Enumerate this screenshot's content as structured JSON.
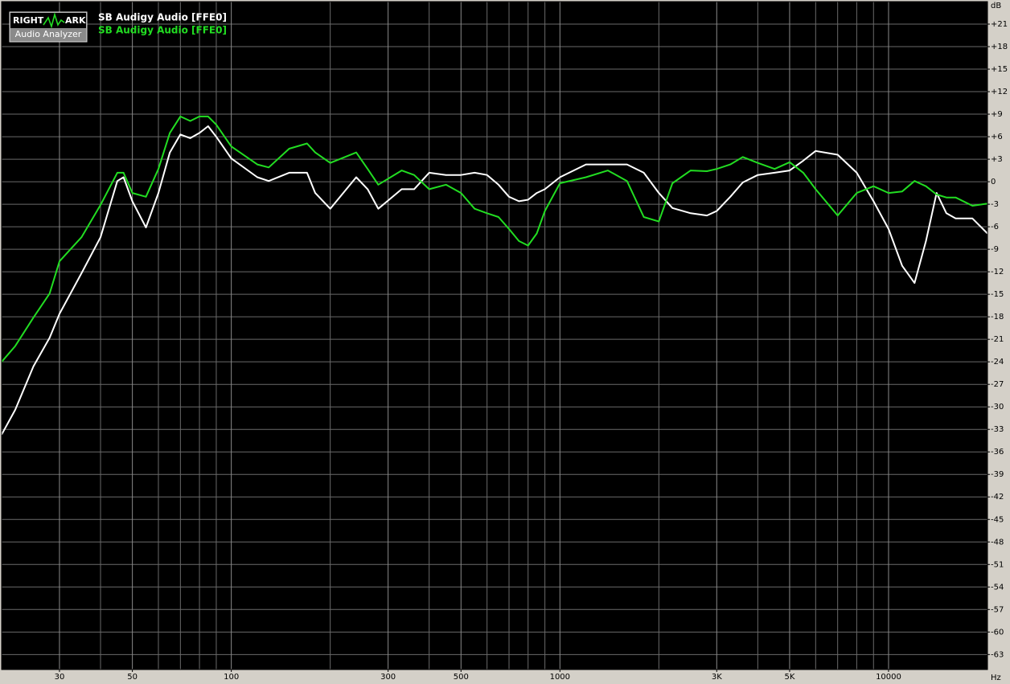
{
  "logo": {
    "left": "RIGHT",
    "right": "ARK",
    "bottom": "Audio Analyzer"
  },
  "chart_data": {
    "type": "line",
    "y_label": "dB",
    "x_label": "Hz",
    "log_x": true,
    "grid": true,
    "background": "#000000",
    "x": [
      20,
      22,
      25,
      28,
      30,
      35,
      40,
      45,
      47,
      50,
      55,
      60,
      65,
      70,
      75,
      80,
      85,
      90,
      100,
      120,
      130,
      150,
      170,
      180,
      200,
      240,
      260,
      280,
      330,
      360,
      400,
      450,
      500,
      550,
      600,
      650,
      700,
      750,
      800,
      850,
      900,
      1000,
      1200,
      1400,
      1600,
      1800,
      2000,
      2200,
      2500,
      2800,
      3000,
      3300,
      3600,
      4000,
      4500,
      5000,
      5500,
      6000,
      7000,
      8000,
      9000,
      10000,
      11000,
      12000,
      13000,
      14000,
      15000,
      16000,
      18000,
      20000
    ],
    "series": [
      {
        "name": "SB Audigy Audio [FFE0]",
        "color": "#ffffff",
        "values": [
          -33.7,
          -30.4,
          -24.6,
          -20.8,
          -17.6,
          -12.2,
          -7.4,
          0.1,
          0.6,
          -2.6,
          -6.1,
          -1.5,
          3.9,
          6.3,
          5.8,
          6.5,
          7.4,
          6.0,
          3.1,
          0.6,
          0.1,
          1.2,
          1.2,
          -1.5,
          -3.6,
          0.6,
          -1.0,
          -3.6,
          -1.0,
          -1.0,
          1.2,
          0.9,
          0.9,
          1.2,
          0.9,
          -0.4,
          -2.0,
          -2.6,
          -2.4,
          -1.5,
          -1.0,
          0.6,
          2.3,
          2.3,
          2.3,
          1.2,
          -1.5,
          -3.5,
          -4.2,
          -4.5,
          -3.9,
          -2.0,
          -0.1,
          0.9,
          1.2,
          1.5,
          2.8,
          4.1,
          3.6,
          1.2,
          -2.6,
          -6.3,
          -11.2,
          -13.5,
          -7.9,
          -1.5,
          -4.2,
          -4.9,
          -4.9,
          -6.9
        ]
      },
      {
        "name": "SB Audigy Audio [FFE0]",
        "color": "#22dd22",
        "values": [
          -24.0,
          -21.9,
          -18.1,
          -14.9,
          -10.6,
          -7.4,
          -3.1,
          1.2,
          1.2,
          -1.5,
          -2.0,
          1.7,
          6.5,
          8.7,
          8.1,
          8.7,
          8.7,
          7.6,
          4.7,
          2.3,
          1.9,
          4.4,
          5.1,
          3.9,
          2.5,
          3.9,
          1.7,
          -0.4,
          1.5,
          0.9,
          -1.0,
          -0.4,
          -1.5,
          -3.6,
          -4.2,
          -4.7,
          -6.3,
          -7.9,
          -8.5,
          -6.9,
          -3.9,
          -0.2,
          0.6,
          1.5,
          0.1,
          -4.7,
          -5.3,
          -0.2,
          1.5,
          1.4,
          1.7,
          2.3,
          3.3,
          2.5,
          1.7,
          2.6,
          1.2,
          -1.0,
          -4.5,
          -1.5,
          -0.6,
          -1.5,
          -1.3,
          0.1,
          -0.6,
          -1.7,
          -2.1,
          -2.1,
          -3.2,
          -2.9
        ]
      }
    ],
    "xlim": [
      20,
      20000
    ],
    "xticks": [
      30,
      50,
      100,
      300,
      500,
      1000,
      {
        "value": 3000,
        "label": "3K"
      },
      {
        "value": 5000,
        "label": "5K"
      },
      10000
    ],
    "xminorticks": [
      20,
      40,
      60,
      70,
      80,
      90,
      200,
      400,
      600,
      700,
      800,
      900,
      2000,
      4000,
      6000,
      7000,
      8000,
      9000,
      20000
    ],
    "ylim": [
      -65,
      24
    ],
    "yticks": [
      {
        "value": 21,
        "label": "+21"
      },
      {
        "value": 18,
        "label": "+18"
      },
      {
        "value": 15,
        "label": "+15"
      },
      {
        "value": 12,
        "label": "+12"
      },
      {
        "value": 9,
        "label": "+9"
      },
      {
        "value": 6,
        "label": "+6"
      },
      {
        "value": 3,
        "label": "+3"
      },
      0,
      -3,
      -6,
      -9,
      -12,
      -15,
      -18,
      -21,
      -24,
      -27,
      -30,
      -33,
      -36,
      -39,
      -42,
      -45,
      -48,
      -51,
      -54,
      -57,
      -60,
      -63
    ]
  }
}
